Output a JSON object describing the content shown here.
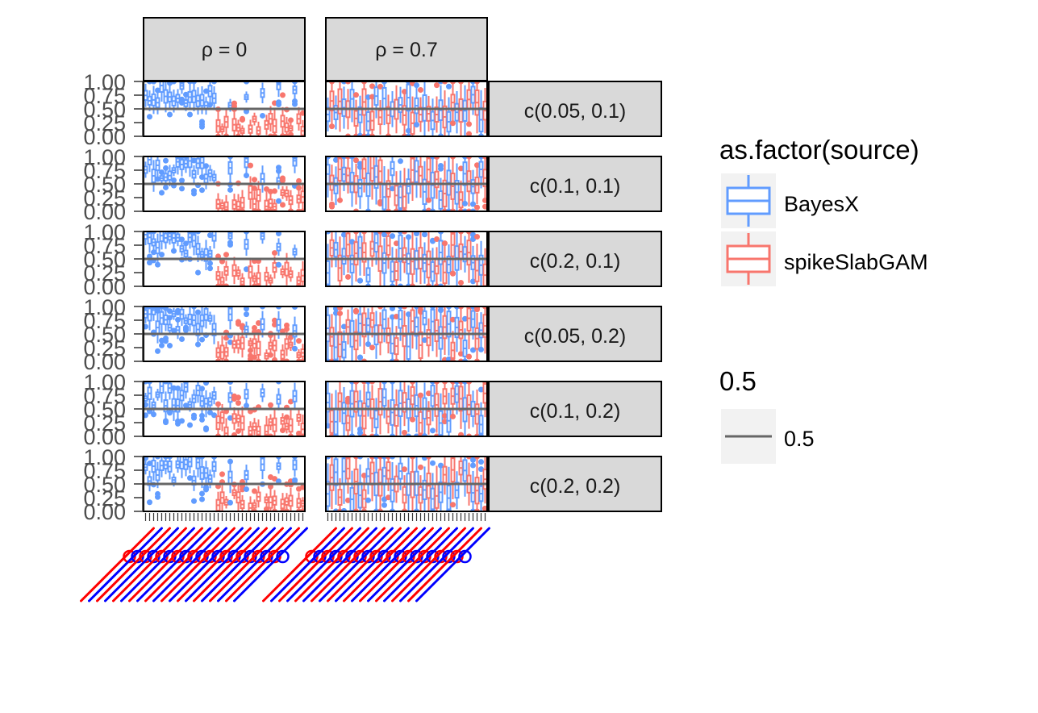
{
  "chart_data": {
    "type": "boxplot-facet",
    "facet_cols": [
      "ρ = 0",
      "ρ = 0.7"
    ],
    "facet_rows": [
      "c(0.05, 0.1)",
      "c(0.1, 0.1)",
      "c(0.2, 0.1)",
      "c(0.05, 0.2)",
      "c(0.1, 0.2)",
      "c(0.2, 0.2)"
    ],
    "y_ticks": [
      "0.00",
      "0.25",
      "0.50",
      "0.75",
      "1.00"
    ],
    "ylim": [
      0,
      1
    ],
    "reference_line": 0.5,
    "legend": {
      "title": "as.factor(source)",
      "entries": [
        {
          "label": "BayesX",
          "color": "#619CFF"
        },
        {
          "label": "spikeSlabGAM",
          "color": "#F8766D"
        }
      ]
    },
    "line_legend": {
      "title": "0.5",
      "entries": [
        {
          "label": "0.5",
          "color": "#666666"
        }
      ]
    },
    "x_label_colors": [
      "#FF0000",
      "#0000FF"
    ]
  }
}
